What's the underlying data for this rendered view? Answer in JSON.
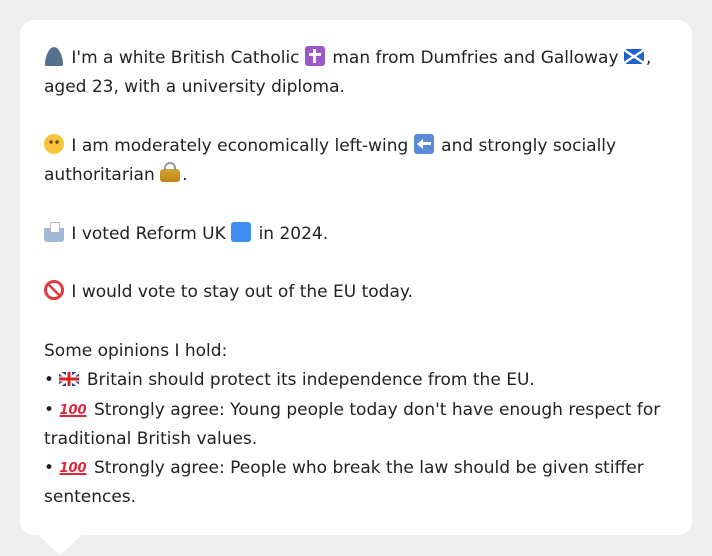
{
  "message": {
    "intro_line": "I'm a white British Catholic",
    "intro_mid": "man from Dumfries and Galloway",
    "intro_end": ", aged 23, with a university diploma.",
    "econ_text": "I am moderately economically left-wing",
    "social_text": "and strongly socially authoritarian",
    "period": ".",
    "vote_text": "I voted Reform UK",
    "vote_year": "in 2024.",
    "eu_text": "I would vote to stay out of the EU today.",
    "opinions_header": "Some opinions I hold:",
    "bullet": "•",
    "opinions": [
      {
        "icon": "uk-flag-icon",
        "text": "Britain should protect its independence from the EU."
      },
      {
        "icon": "hundred-points-icon",
        "glyph": "100",
        "text": "Strongly agree: Young people today don't have enough respect for traditional British values."
      },
      {
        "icon": "hundred-points-icon",
        "glyph": "100",
        "text": "Strongly agree: People who break the law should be given stiffer sentences."
      }
    ]
  },
  "colors": {
    "card_background": "#ffffff",
    "page_background": "#eeeeef",
    "text": "#222222"
  }
}
